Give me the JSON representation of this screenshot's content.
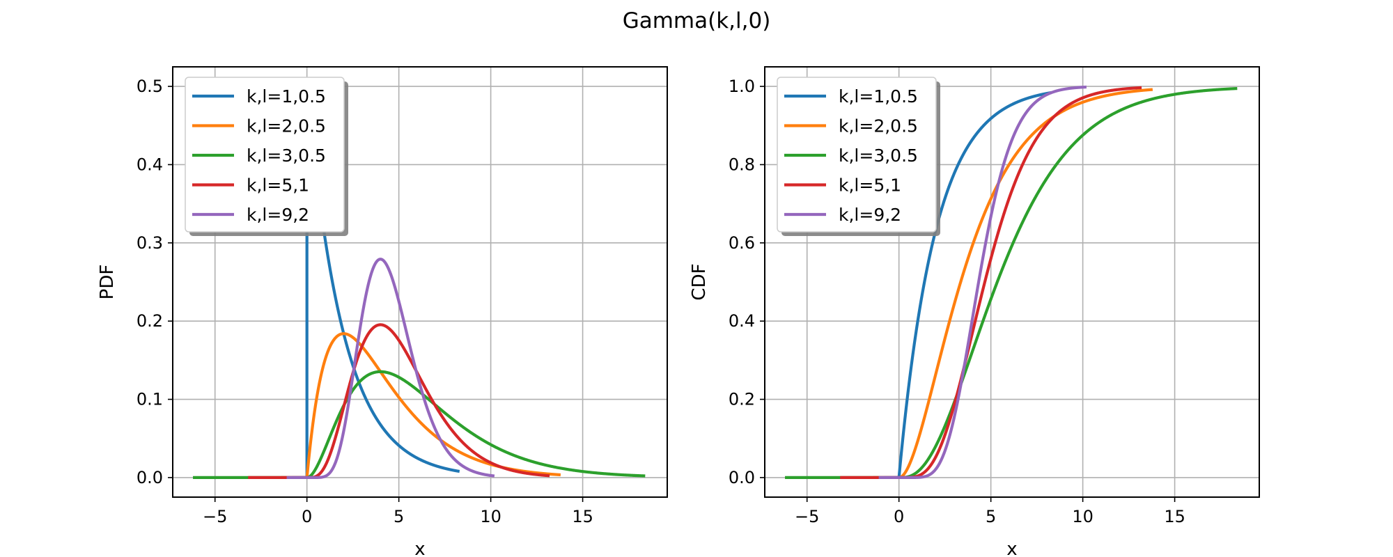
{
  "figure": {
    "title": "Gamma(k,l,0)"
  },
  "colors": {
    "blue": "#1f77b4",
    "orange": "#ff7f0e",
    "green": "#2ca02c",
    "red": "#d62728",
    "purple": "#9467bd",
    "grid": "#b0b0b0"
  },
  "chart_data": [
    {
      "type": "line",
      "function": "pdf",
      "title": "",
      "xlabel": "x",
      "ylabel": "PDF",
      "xlim": [
        -7.3,
        19.6
      ],
      "ylim": [
        -0.025,
        0.525
      ],
      "xticks": [
        -5,
        0,
        5,
        10,
        15
      ],
      "xtick_labels": [
        "−5",
        "0",
        "5",
        "10",
        "15"
      ],
      "yticks": [
        0.0,
        0.1,
        0.2,
        0.3,
        0.4,
        0.5
      ],
      "ytick_labels": [
        "0.0",
        "0.1",
        "0.2",
        "0.3",
        "0.4",
        "0.5"
      ],
      "grid": true,
      "legend_position": "upper-left",
      "series": [
        {
          "name": "k,l=1,0.5",
          "k": 1,
          "l": 0.5,
          "x_range": [
            -0.8,
            8.3
          ],
          "color": "#1f77b4"
        },
        {
          "name": "k,l=2,0.5",
          "k": 2,
          "l": 0.5,
          "x_range": [
            -1.4,
            13.8
          ],
          "color": "#ff7f0e"
        },
        {
          "name": "k,l=3,0.5",
          "k": 3,
          "l": 0.5,
          "x_range": [
            -6.2,
            18.4
          ],
          "color": "#2ca02c"
        },
        {
          "name": "k,l=5,1",
          "k": 5,
          "l": 1,
          "x_range": [
            -3.2,
            13.2
          ],
          "color": "#d62728"
        },
        {
          "name": "k,l=9,2",
          "k": 9,
          "l": 2,
          "x_range": [
            -1.1,
            10.2
          ],
          "color": "#9467bd"
        }
      ]
    },
    {
      "type": "line",
      "function": "cdf",
      "title": "",
      "xlabel": "x",
      "ylabel": "CDF",
      "xlim": [
        -7.3,
        19.6
      ],
      "ylim": [
        -0.05,
        1.05
      ],
      "xticks": [
        -5,
        0,
        5,
        10,
        15
      ],
      "xtick_labels": [
        "−5",
        "0",
        "5",
        "10",
        "15"
      ],
      "yticks": [
        0.0,
        0.2,
        0.4,
        0.6,
        0.8,
        1.0
      ],
      "ytick_labels": [
        "0.0",
        "0.2",
        "0.4",
        "0.6",
        "0.8",
        "1.0"
      ],
      "grid": true,
      "legend_position": "upper-left",
      "series": [
        {
          "name": "k,l=1,0.5",
          "k": 1,
          "l": 0.5,
          "x_range": [
            -0.8,
            8.3
          ],
          "color": "#1f77b4"
        },
        {
          "name": "k,l=2,0.5",
          "k": 2,
          "l": 0.5,
          "x_range": [
            -1.4,
            13.8
          ],
          "color": "#ff7f0e"
        },
        {
          "name": "k,l=3,0.5",
          "k": 3,
          "l": 0.5,
          "x_range": [
            -6.2,
            18.4
          ],
          "color": "#2ca02c"
        },
        {
          "name": "k,l=5,1",
          "k": 5,
          "l": 1,
          "x_range": [
            -3.2,
            13.2
          ],
          "color": "#d62728"
        },
        {
          "name": "k,l=9,2",
          "k": 9,
          "l": 2,
          "x_range": [
            -1.1,
            10.2
          ],
          "color": "#9467bd"
        }
      ]
    }
  ]
}
